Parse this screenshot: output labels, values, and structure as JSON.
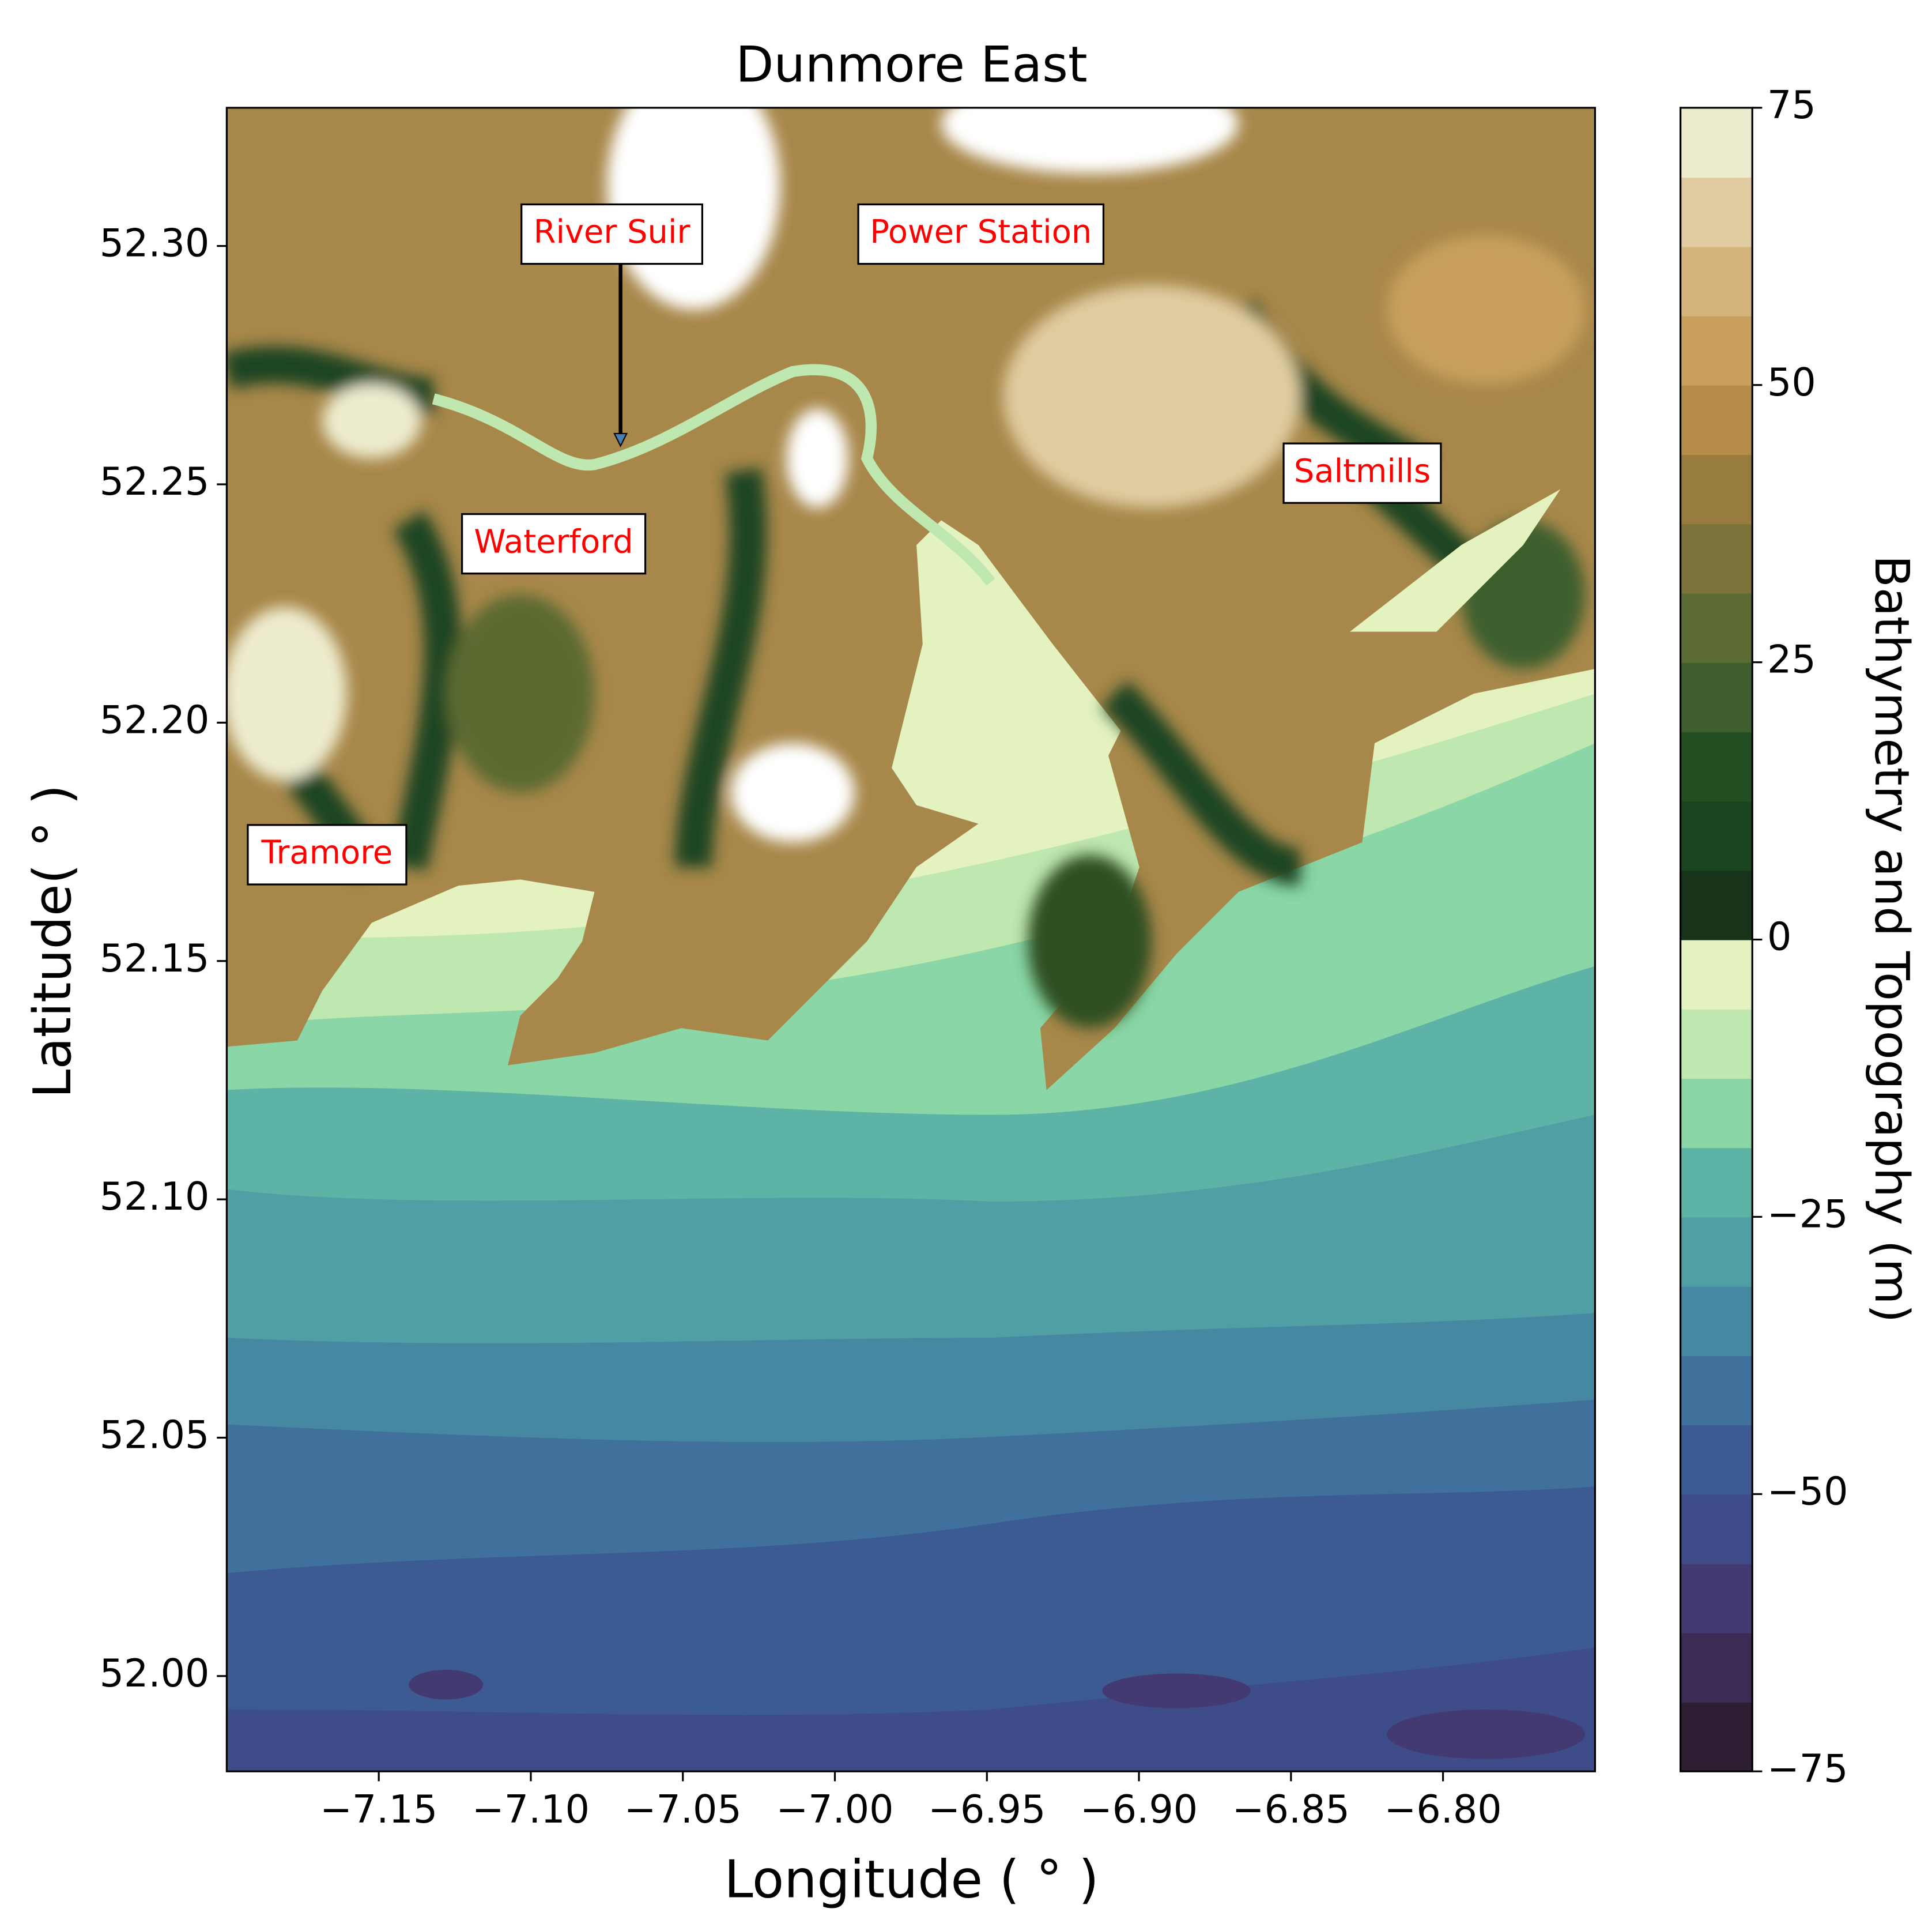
{
  "chart_data": {
    "type": "contour",
    "title": "Dunmore East",
    "x_label": "Longitude ( ° )",
    "y_label": "Latitude( ° )",
    "xlim": [
      -7.2,
      -6.75
    ],
    "ylim": [
      51.98,
      52.329
    ],
    "xticks": [
      {
        "value": -7.15,
        "label": "−7.15"
      },
      {
        "value": -7.1,
        "label": "−7.10"
      },
      {
        "value": -7.05,
        "label": "−7.05"
      },
      {
        "value": -7.0,
        "label": "−7.00"
      },
      {
        "value": -6.95,
        "label": "−6.95"
      },
      {
        "value": -6.9,
        "label": "−6.90"
      },
      {
        "value": -6.85,
        "label": "−6.85"
      },
      {
        "value": -6.8,
        "label": "−6.80"
      }
    ],
    "yticks": [
      {
        "value": 52.0,
        "label": "52.00"
      },
      52.05,
      {
        "value": 52.1,
        "label": "52.10"
      },
      52.15,
      {
        "value": 52.2,
        "label": "52.20"
      },
      52.25,
      {
        "value": 52.3,
        "label": "52.30"
      }
    ],
    "colorbar": {
      "label": "Bathymetry and Topography (m)",
      "lim": [
        -75,
        75
      ],
      "ticks": [
        {
          "value": -75,
          "label": "−75"
        },
        {
          "value": -50,
          "label": "−50"
        },
        {
          "value": -25,
          "label": "−25"
        },
        0,
        25,
        50,
        75
      ],
      "colors": [
        "#2d1e33",
        "#3a2c52",
        "#433a71",
        "#3e4c8a",
        "#3d5b93",
        "#40719c",
        "#4687a1",
        "#4f9fa5",
        "#5cb3a6",
        "#8ad6a6",
        "#bfe7b0",
        "#e3f2bf",
        "#17331a",
        "#1b4420",
        "#234f22",
        "#3e5e2d",
        "#5c6a33",
        "#7b7339",
        "#987b3f",
        "#b58d48",
        "#c8a05b",
        "#d6b57d",
        "#e0cca0",
        "#eeeccf"
      ]
    },
    "annotations": [
      "River Suir",
      "Power Station",
      "Waterford",
      "Saltmills",
      "Tramore"
    ]
  }
}
